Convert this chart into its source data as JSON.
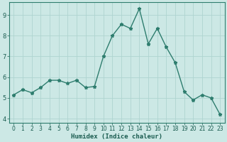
{
  "x": [
    0,
    1,
    2,
    3,
    4,
    5,
    6,
    7,
    8,
    9,
    10,
    11,
    12,
    13,
    14,
    15,
    16,
    17,
    18,
    19,
    20,
    21,
    22,
    23
  ],
  "y": [
    5.15,
    5.4,
    5.25,
    5.5,
    5.85,
    5.85,
    5.7,
    5.85,
    5.5,
    5.55,
    7.0,
    8.0,
    8.55,
    8.35,
    9.3,
    7.6,
    8.35,
    7.45,
    6.7,
    5.3,
    4.9,
    5.15,
    5.0,
    4.2
  ],
  "line_color": "#2e7d6e",
  "marker": "*",
  "marker_color": "#2e7d6e",
  "bg_color": "#cce8e5",
  "grid_color": "#afd4d0",
  "axis_color": "#2e7d6e",
  "xlabel": "Humidex (Indice chaleur)",
  "xlim": [
    -0.5,
    23.5
  ],
  "ylim": [
    3.8,
    9.6
  ],
  "yticks": [
    4,
    5,
    6,
    7,
    8,
    9
  ],
  "xticks": [
    0,
    1,
    2,
    3,
    4,
    5,
    6,
    7,
    8,
    9,
    10,
    11,
    12,
    13,
    14,
    15,
    16,
    17,
    18,
    19,
    20,
    21,
    22,
    23
  ],
  "font_color": "#1a5c50",
  "linewidth": 1.0,
  "markersize": 3.5,
  "tick_fontsize": 5.5,
  "xlabel_fontsize": 6.5
}
